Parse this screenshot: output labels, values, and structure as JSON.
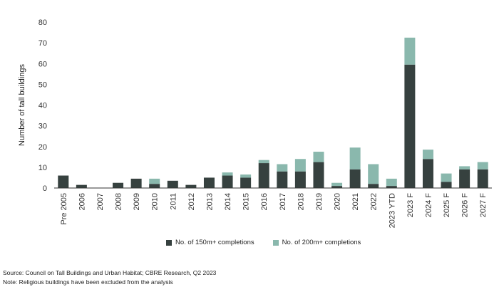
{
  "chart_data": {
    "type": "bar",
    "stacked": true,
    "title": "",
    "xlabel": "",
    "ylabel": "Number of tall buildings",
    "ylim": [
      0,
      80
    ],
    "yticks": [
      0,
      10,
      20,
      30,
      40,
      50,
      60,
      70,
      80
    ],
    "grid": false,
    "legend_position": "bottom",
    "categories": [
      "Pre 2005",
      "2006",
      "2007",
      "2008",
      "2009",
      "2010",
      "2011",
      "2012",
      "2013",
      "2014",
      "2015",
      "2016",
      "2017",
      "2018",
      "2019",
      "2020",
      "2021",
      "2022",
      "2023 YTD",
      "2023 F",
      "2024 F",
      "2025 F",
      "2026 F",
      "2027 F"
    ],
    "series": [
      {
        "name": "No. of 150m+ completions",
        "color": "#36413f",
        "values": [
          6,
          1.5,
          0,
          2.5,
          4.5,
          2,
          3.5,
          1.5,
          5,
          6,
          5,
          12,
          8,
          8,
          12.5,
          1,
          9,
          2,
          1,
          59.5,
          14,
          3,
          9,
          9
        ]
      },
      {
        "name": "No. of 200m+ completions",
        "color": "#8ab8ad",
        "values": [
          0,
          0,
          0,
          0,
          0,
          2.5,
          0,
          0,
          0,
          1.5,
          1.5,
          1.5,
          3.5,
          6,
          5,
          1.5,
          10.5,
          9.5,
          3.5,
          13,
          4.5,
          4,
          1.5,
          3.5
        ]
      }
    ]
  },
  "notes": {
    "source": "Source: Council on Tall Buildings and Urban Habitat; CBRE Research, Q2 2023",
    "note": "Note: Religious buildings have been excluded from the analysis"
  }
}
